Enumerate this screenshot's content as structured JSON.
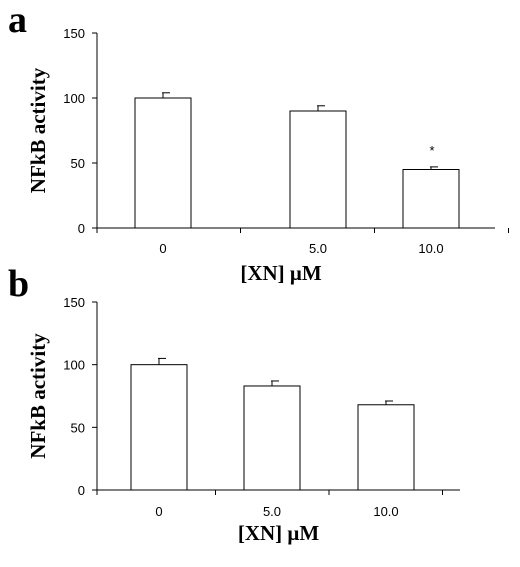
{
  "chart_data": [
    {
      "panel": "a",
      "type": "bar",
      "categories": [
        "0",
        "5.0",
        "10.0"
      ],
      "values": [
        100,
        90,
        45
      ],
      "errors": [
        4,
        4,
        2
      ],
      "annotations": [
        "",
        "",
        "*"
      ],
      "xlabel": "[XN]  μM",
      "ylabel": "NFkB activity",
      "ylim": [
        0,
        150
      ],
      "yticks": [
        "0",
        "50",
        "100",
        "150"
      ]
    },
    {
      "panel": "b",
      "type": "bar",
      "categories": [
        "0",
        "5.0",
        "10.0"
      ],
      "values": [
        100,
        83,
        68
      ],
      "errors": [
        5,
        4,
        3
      ],
      "annotations": [
        "",
        "",
        ""
      ],
      "xlabel": "[XN]  μM",
      "ylabel": "NFkB activity",
      "ylim": [
        0,
        150
      ],
      "yticks": [
        "0",
        "50",
        "100",
        "150"
      ]
    }
  ]
}
